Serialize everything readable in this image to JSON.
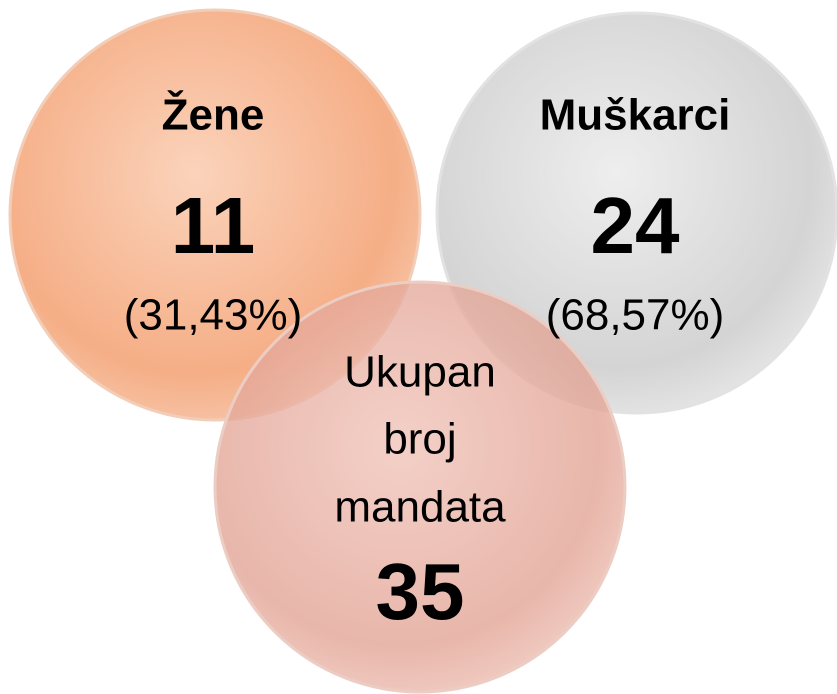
{
  "nodes": [
    {
      "label": "Žene",
      "count": 11,
      "share": "(31,43%)"
    },
    {
      "label": "Muškarci",
      "count": 24,
      "share": "(68,57%)"
    },
    {
      "label_lines": [
        "Ukupan",
        "broj",
        "mandata"
      ],
      "count": 35
    }
  ]
}
